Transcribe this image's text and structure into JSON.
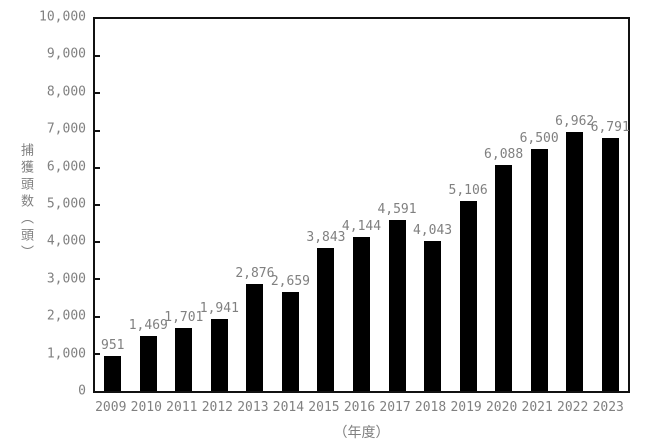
{
  "chart_data": {
    "type": "bar",
    "title": "",
    "categories": [
      "2009",
      "2010",
      "2011",
      "2012",
      "2013",
      "2014",
      "2015",
      "2016",
      "2017",
      "2018",
      "2019",
      "2020",
      "2021",
      "2022",
      "2023"
    ],
    "values": [
      951,
      1469,
      1701,
      1941,
      2876,
      2659,
      3843,
      4144,
      4591,
      4043,
      5106,
      6088,
      6500,
      6962,
      6791
    ],
    "value_labels": [
      "951",
      "1,469",
      "1,701",
      "1,941",
      "2,876",
      "2,659",
      "3,843",
      "4,144",
      "4,591",
      "4,043",
      "5,106",
      "6,088",
      "6,500",
      "6,962",
      "6,791"
    ],
    "xlabel": "（年度）",
    "ylabel": "捕獲頭数（頭）",
    "ylim": [
      0,
      10000
    ],
    "ytick_interval": 1000,
    "ytick_labels": [
      "0",
      "1,000",
      "2,000",
      "3,000",
      "4,000",
      "5,000",
      "6,000",
      "7,000",
      "8,000",
      "9,000",
      "10,000"
    ],
    "grid": false,
    "legend_position": "none",
    "bar_color": "#000000",
    "label_color": "#808080",
    "axis_color": "#111111",
    "background_color": "#ffffff"
  }
}
